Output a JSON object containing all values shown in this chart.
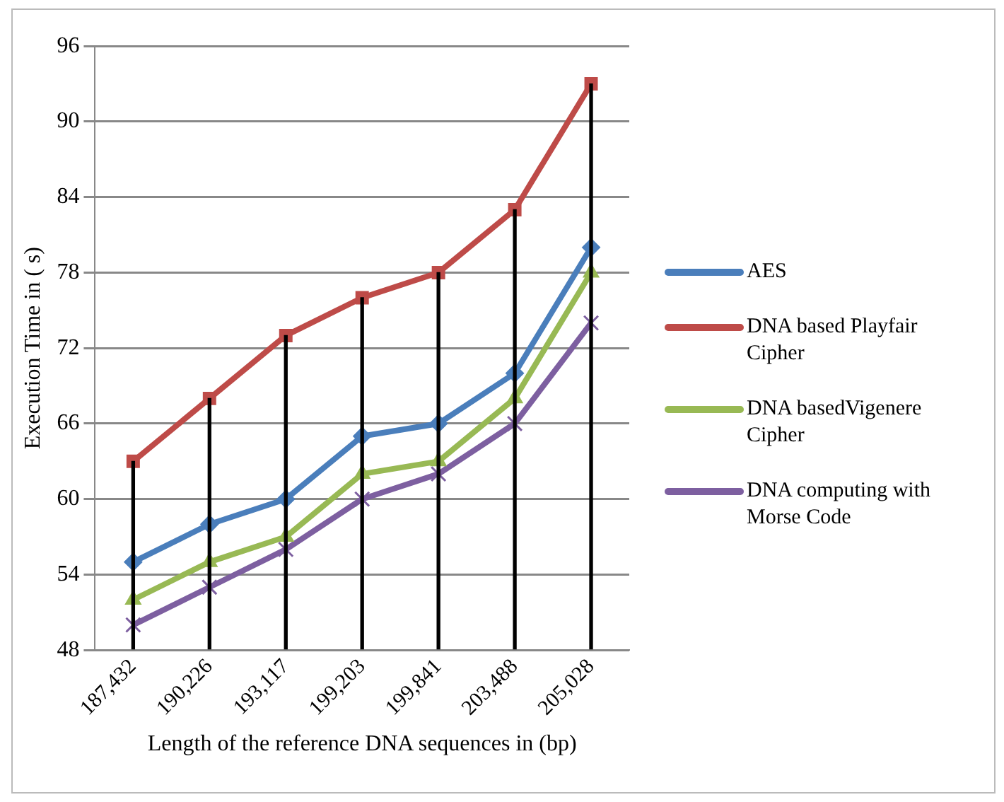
{
  "chart_data": {
    "type": "line",
    "xlabel": "Length of the reference DNA sequences in (bp)",
    "ylabel": "Execution Time in ( s)",
    "categories": [
      "187,432",
      "190,226",
      "193,117",
      "199,203",
      "199,841",
      "203,488",
      "205,028"
    ],
    "series": [
      {
        "name": "AES",
        "color": "#4a7ebb",
        "marker": "diamond",
        "values": [
          55,
          58,
          60,
          65,
          66,
          70,
          80
        ]
      },
      {
        "name": "DNA based Playfair Cipher",
        "color": "#be4b48",
        "marker": "square",
        "values": [
          63,
          68,
          73,
          76,
          78,
          83,
          93
        ]
      },
      {
        "name": "DNA basedVigenere Cipher",
        "color": "#98b954",
        "marker": "triangle",
        "values": [
          52,
          55,
          57,
          62,
          63,
          68,
          78
        ]
      },
      {
        "name": "DNA computing with Morse Code",
        "color": "#7d5fa0",
        "marker": "cross",
        "values": [
          50,
          53,
          56,
          60,
          62,
          66,
          74
        ]
      },
      {
        "type": "bar",
        "color": "#000000",
        "values": [
          63,
          68,
          73,
          76,
          78,
          83,
          93
        ]
      }
    ],
    "ylim": [
      48,
      96
    ],
    "yticks": [
      48,
      54,
      60,
      66,
      72,
      78,
      84,
      90,
      96
    ],
    "grid": "y",
    "legend": "right",
    "line_style": "solid"
  }
}
